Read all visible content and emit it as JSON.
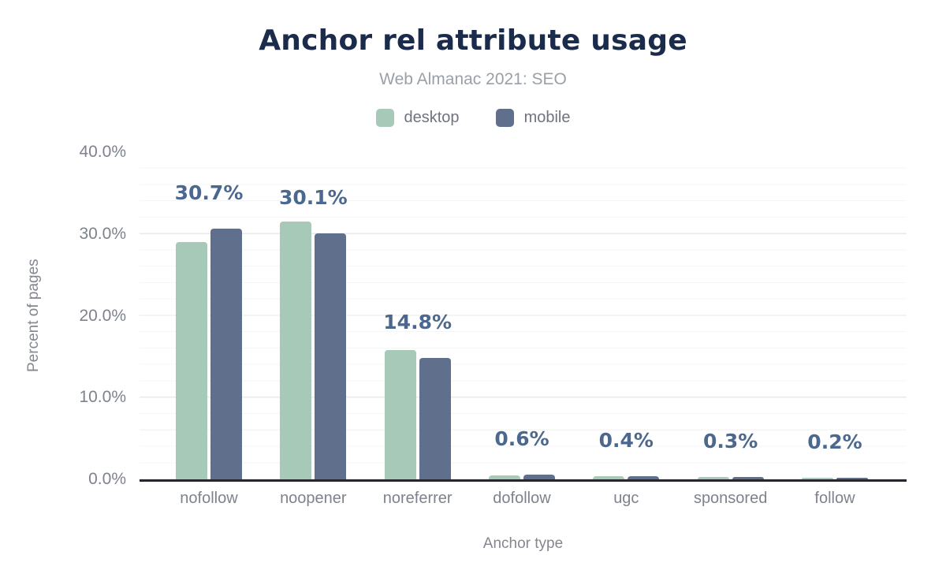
{
  "header": {
    "title": "Anchor rel attribute usage",
    "subtitle": "Web Almanac 2021: SEO"
  },
  "legend": [
    {
      "label": "desktop",
      "color": "#a7c9b8"
    },
    {
      "label": "mobile",
      "color": "#60708c"
    }
  ],
  "axes": {
    "y_title": "Percent of pages",
    "x_title": "Anchor type"
  },
  "chart_data": {
    "type": "bar",
    "title": "Anchor rel attribute usage",
    "subtitle": "Web Almanac 2021: SEO",
    "xlabel": "Anchor type",
    "ylabel": "Percent of pages",
    "ylim": [
      0,
      40
    ],
    "yticks": [
      "0.0%",
      "10.0%",
      "20.0%",
      "30.0%",
      "40.0%"
    ],
    "grid": {
      "minor_step_pct": 2,
      "major_step_pct": 10,
      "gridlines": "on"
    },
    "legend_position": "top-center",
    "categories": [
      "nofollow",
      "noopener",
      "noreferrer",
      "dofollow",
      "ugc",
      "sponsored",
      "follow"
    ],
    "series": [
      {
        "name": "desktop",
        "color": "#a7c9b8",
        "values": [
          29.0,
          31.5,
          15.8,
          0.5,
          0.4,
          0.25,
          0.2
        ]
      },
      {
        "name": "mobile",
        "color": "#60708c",
        "values": [
          30.7,
          30.1,
          14.8,
          0.6,
          0.4,
          0.3,
          0.2
        ]
      }
    ],
    "data_labels": [
      "30.7%",
      "30.1%",
      "14.8%",
      "0.6%",
      "0.4%",
      "0.3%",
      "0.2%"
    ],
    "data_labels_source": "mobile series values shown above each group"
  },
  "colors": {
    "title": "#1b2b4b",
    "subtitle": "#9aa0a8",
    "data_label": "#4c688f",
    "tick_label": "#7d828c",
    "axis_title": "#84878f",
    "axis_line": "#26262b",
    "grid_minor": "#f5f5f5",
    "grid_major": "#e9e9e9",
    "background": "#ffffff"
  }
}
